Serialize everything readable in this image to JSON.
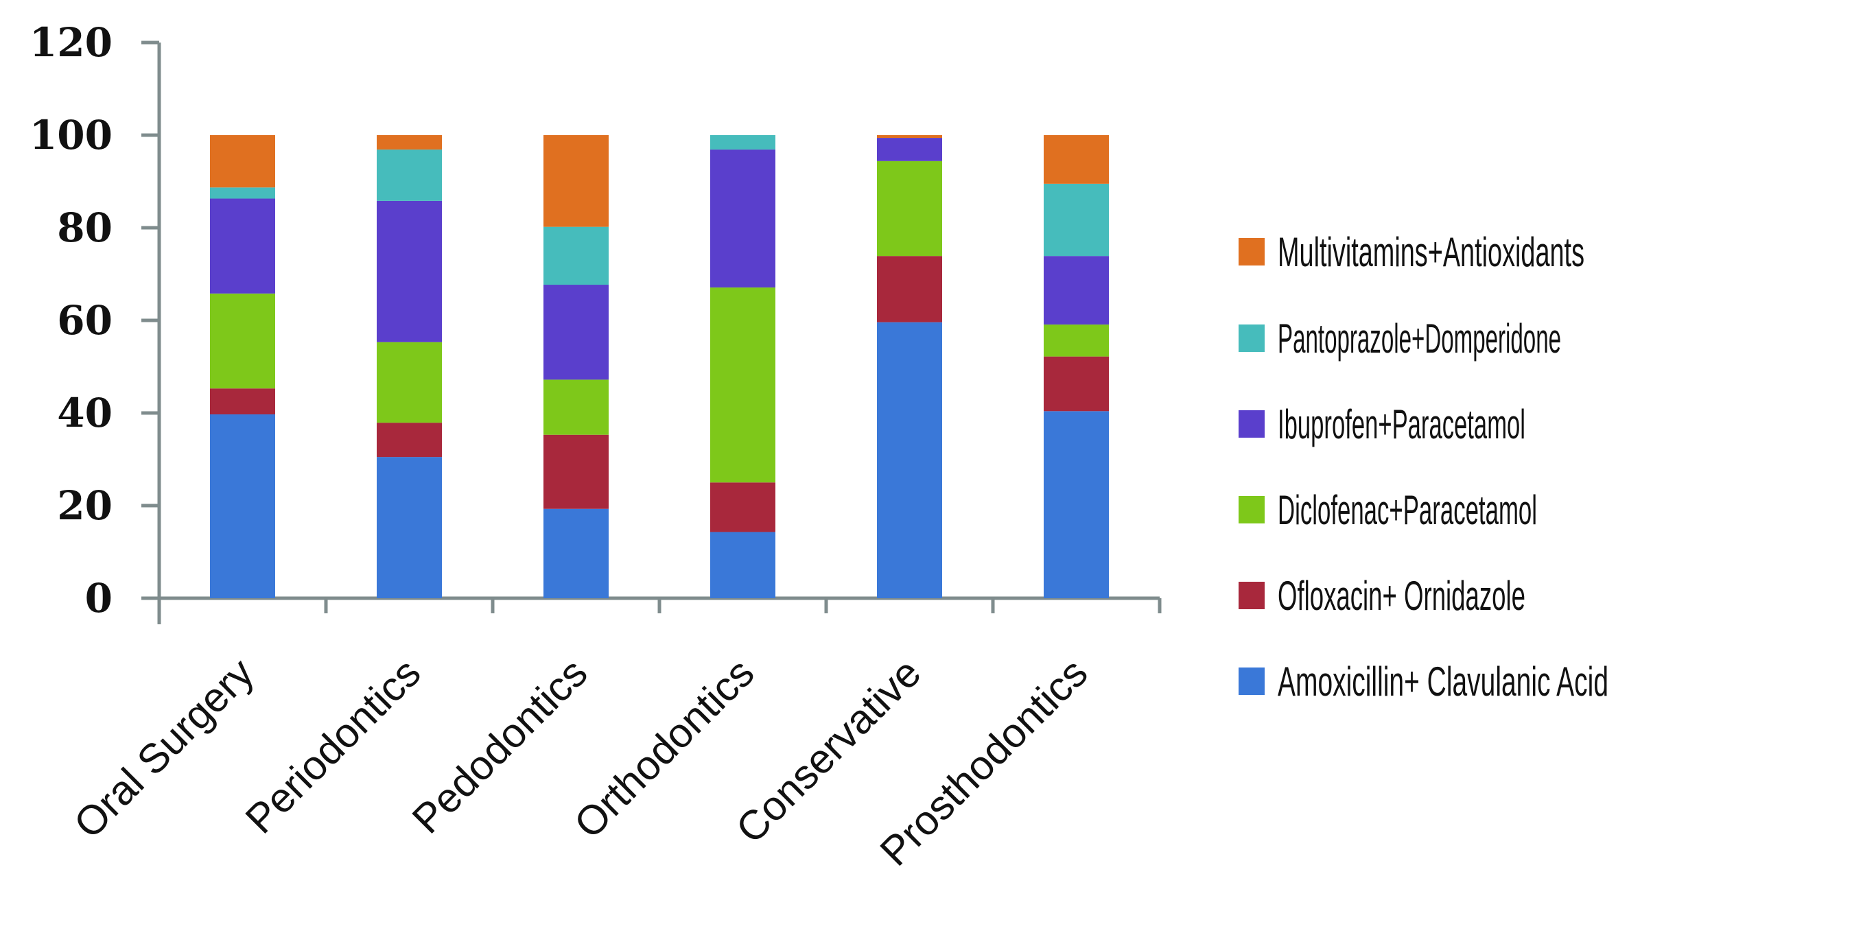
{
  "chart_data": {
    "type": "bar",
    "stacked": true,
    "title": "",
    "xlabel": "",
    "ylabel": "",
    "ylim": [
      0,
      120
    ],
    "yticks": [
      0,
      20,
      40,
      60,
      80,
      100,
      120
    ],
    "grid": false,
    "legend_position": "right",
    "categories": [
      "Oral Surgery",
      "Periodontics",
      "Pedodontics",
      "Orthodontics",
      "Conservative",
      "Prosthodontics"
    ],
    "series": [
      {
        "name": "Amoxicillin+ Clavulanic Acid",
        "color": "#3a78d8",
        "values": [
          39.7,
          30.5,
          19.3,
          14.3,
          59.6,
          40.4
        ]
      },
      {
        "name": "Ofloxacin+ Ornidazole",
        "color": "#a8283c",
        "values": [
          5.6,
          7.4,
          16.0,
          10.7,
          14.3,
          11.8
        ]
      },
      {
        "name": "Diclofenac+Paracetamol",
        "color": "#7ec81a",
        "values": [
          20.5,
          17.4,
          11.9,
          42.1,
          20.5,
          6.9
        ]
      },
      {
        "name": "Ibuprofen+Paracetamol",
        "color": "#5a3fcc",
        "values": [
          20.5,
          30.5,
          20.5,
          29.8,
          5.0,
          14.8
        ]
      },
      {
        "name": "Pantoprazole+Domperidone",
        "color": "#46bcbc",
        "values": [
          2.4,
          11.1,
          12.5,
          3.1,
          0.0,
          15.6
        ]
      },
      {
        "name": "Multivitamins+Antioxidants",
        "color": "#e07020",
        "values": [
          11.3,
          3.1,
          19.8,
          0.0,
          0.6,
          10.5
        ]
      }
    ]
  }
}
